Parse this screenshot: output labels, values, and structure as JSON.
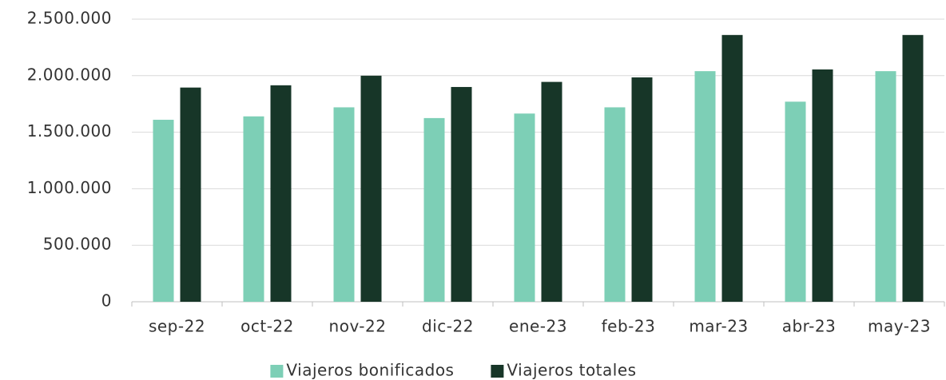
{
  "chart_data": {
    "type": "bar",
    "categories": [
      "sep-22",
      "oct-22",
      "nov-22",
      "dic-22",
      "ene-23",
      "feb-23",
      "mar-23",
      "abr-23",
      "may-23"
    ],
    "series": [
      {
        "name": "Viajeros bonificados",
        "color": "#7dcfb6",
        "values": [
          1610000,
          1640000,
          1720000,
          1625000,
          1665000,
          1720000,
          2040000,
          1770000,
          2040000
        ]
      },
      {
        "name": "Viajeros totales",
        "color": "#173628",
        "values": [
          1895000,
          1915000,
          2000000,
          1900000,
          1945000,
          1985000,
          2360000,
          2055000,
          2360000
        ]
      }
    ],
    "ylim": [
      0,
      2500000
    ],
    "yticks": [
      0,
      {
        "value": 500000,
        "label": "500.000"
      },
      {
        "value": 1000000,
        "label": "1.000.000"
      },
      {
        "value": 1500000,
        "label": "1.500.000"
      },
      {
        "value": 2000000,
        "label": "2.000.000"
      },
      {
        "value": 2500000,
        "label": "2.500.000"
      }
    ],
    "grid": true,
    "legend": "bottom"
  }
}
